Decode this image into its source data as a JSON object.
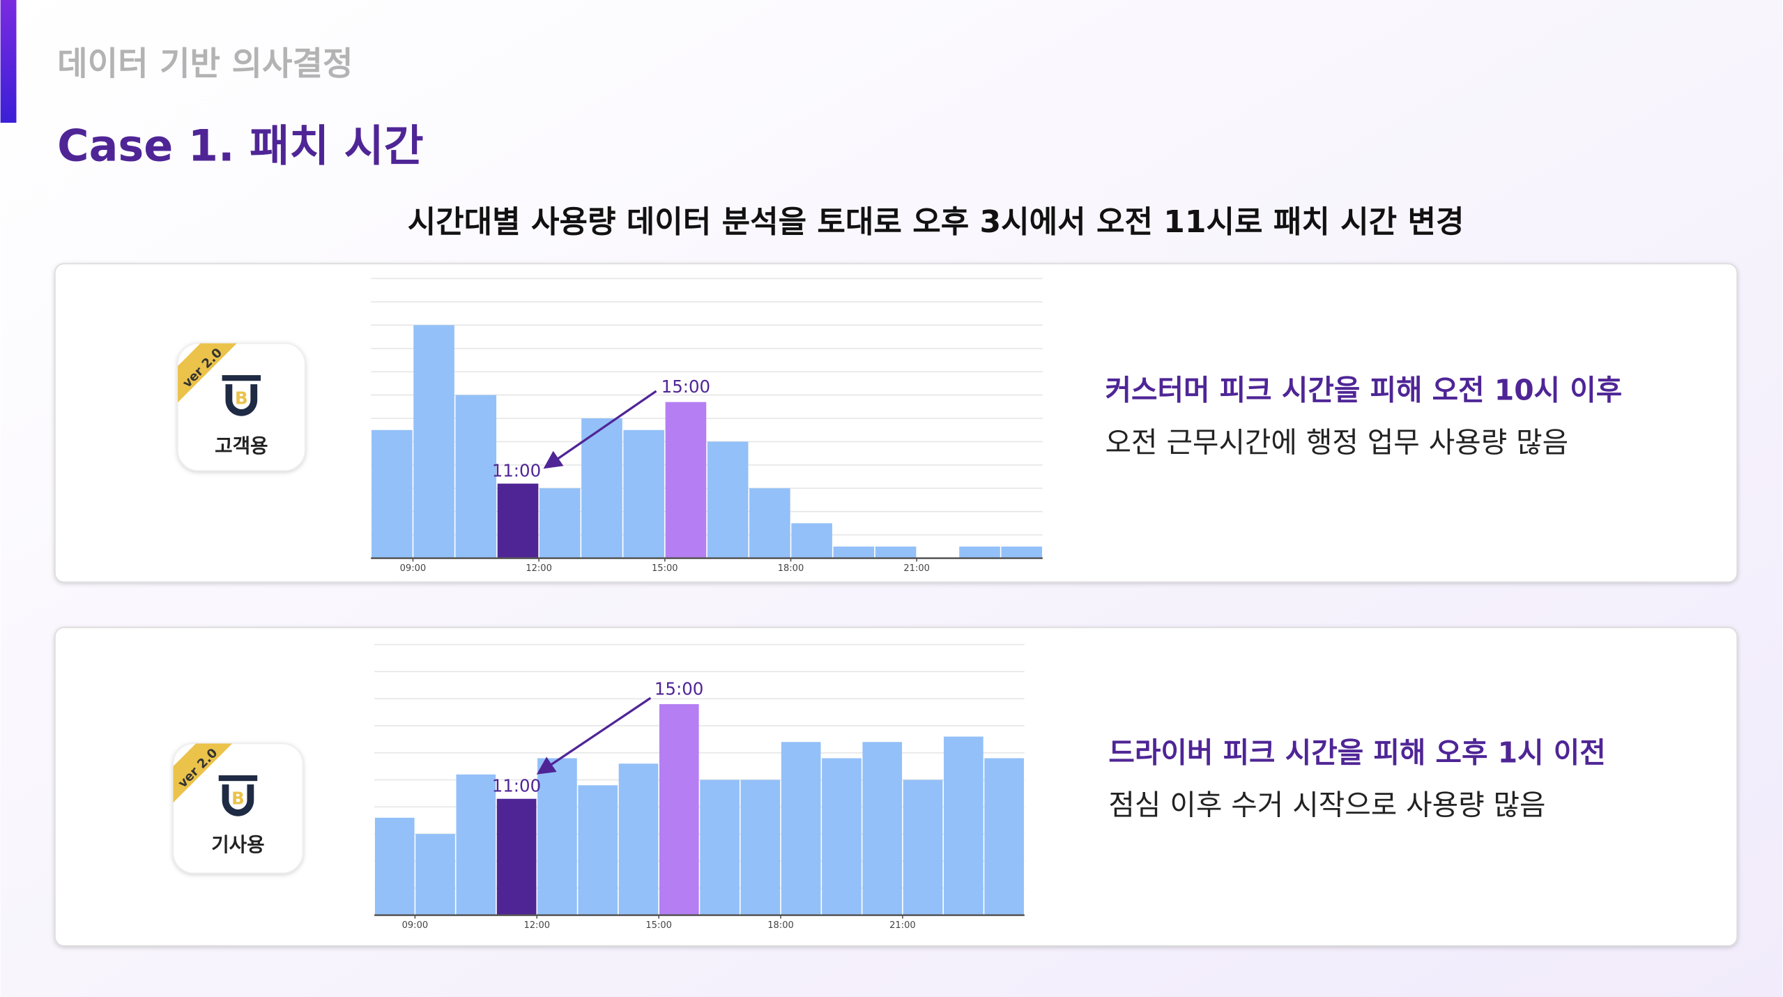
{
  "header": {
    "section": "데이터 기반 의사결정",
    "title": "Case 1. 패치 시간",
    "subtitle": "시간대별 사용량 데이터 분석을 토대로 오후 3시에서 오전 11시로 패치 시간 변경"
  },
  "cards": [
    {
      "app_badge": "ver 2.0",
      "app_label": "고객용",
      "headline": "커스터머 피크 시간을 피해 오전 10시 이후",
      "description": "오전 근무시간에 행정 업무 사용량 많음"
    },
    {
      "app_badge": "ver 2.0",
      "app_label": "기사용",
      "headline": "드라이버 피크 시간을 피해 오후 1시 이전",
      "description": "점심 이후 수거 시작으로 사용량 많음"
    }
  ],
  "chart_data": [
    {
      "type": "histogram",
      "bins": [
        8,
        9,
        10,
        11,
        12,
        13,
        14,
        15,
        16,
        17,
        18,
        19,
        20,
        21,
        22,
        23,
        24
      ],
      "values": [
        5.5,
        10,
        7,
        3.2,
        3,
        6,
        5.5,
        6.7,
        5,
        3,
        1.5,
        0.5,
        0.5,
        0,
        0.5,
        0.5
      ],
      "colors": [
        "#93c0f8",
        "#93c0f8",
        "#93c0f8",
        "#4f2596",
        "#93c0f8",
        "#93c0f8",
        "#93c0f8",
        "#b57ef2",
        "#93c0f8",
        "#93c0f8",
        "#93c0f8",
        "#93c0f8",
        "#93c0f8",
        "#93c0f8",
        "#93c0f8",
        "#93c0f8"
      ],
      "xlim": [
        8,
        24
      ],
      "ylim": [
        0,
        12
      ],
      "yticks": [
        0,
        1,
        2,
        3,
        4,
        5,
        6,
        7,
        8,
        9,
        10,
        11,
        12
      ],
      "grid": true,
      "xticks": [
        {
          "value": 9,
          "label": "09:00"
        },
        {
          "value": 12,
          "label": "12:00"
        },
        {
          "value": 15,
          "label": "15:00"
        },
        {
          "value": 18,
          "label": "18:00"
        },
        {
          "value": 21,
          "label": "21:00"
        }
      ],
      "annotations": [
        "15:00",
        "11:00"
      ]
    },
    {
      "type": "histogram",
      "bins": [
        8,
        9,
        10,
        11,
        12,
        13,
        14,
        15,
        16,
        17,
        18,
        19,
        20,
        21,
        22,
        23,
        24
      ],
      "values": [
        3.6,
        3,
        5.2,
        4.3,
        5.8,
        4.8,
        5.6,
        7.8,
        5,
        5,
        6.4,
        5.8,
        6.4,
        5,
        6.6,
        5.8
      ],
      "colors": [
        "#93c0f8",
        "#93c0f8",
        "#93c0f8",
        "#4f2596",
        "#93c0f8",
        "#93c0f8",
        "#93c0f8",
        "#b57ef2",
        "#93c0f8",
        "#93c0f8",
        "#93c0f8",
        "#93c0f8",
        "#93c0f8",
        "#93c0f8",
        "#93c0f8",
        "#93c0f8"
      ],
      "xlim": [
        8,
        24
      ],
      "ylim": [
        0,
        10
      ],
      "yticks": [
        0,
        1,
        2,
        3,
        4,
        5,
        6,
        7,
        8,
        9,
        10
      ],
      "grid": true,
      "xticks": [
        {
          "value": 9,
          "label": "09:00"
        },
        {
          "value": 12,
          "label": "12:00"
        },
        {
          "value": 15,
          "label": "15:00"
        },
        {
          "value": 18,
          "label": "18:00"
        },
        {
          "value": 21,
          "label": "21:00"
        }
      ],
      "annotations": [
        "15:00",
        "11:00"
      ]
    }
  ]
}
